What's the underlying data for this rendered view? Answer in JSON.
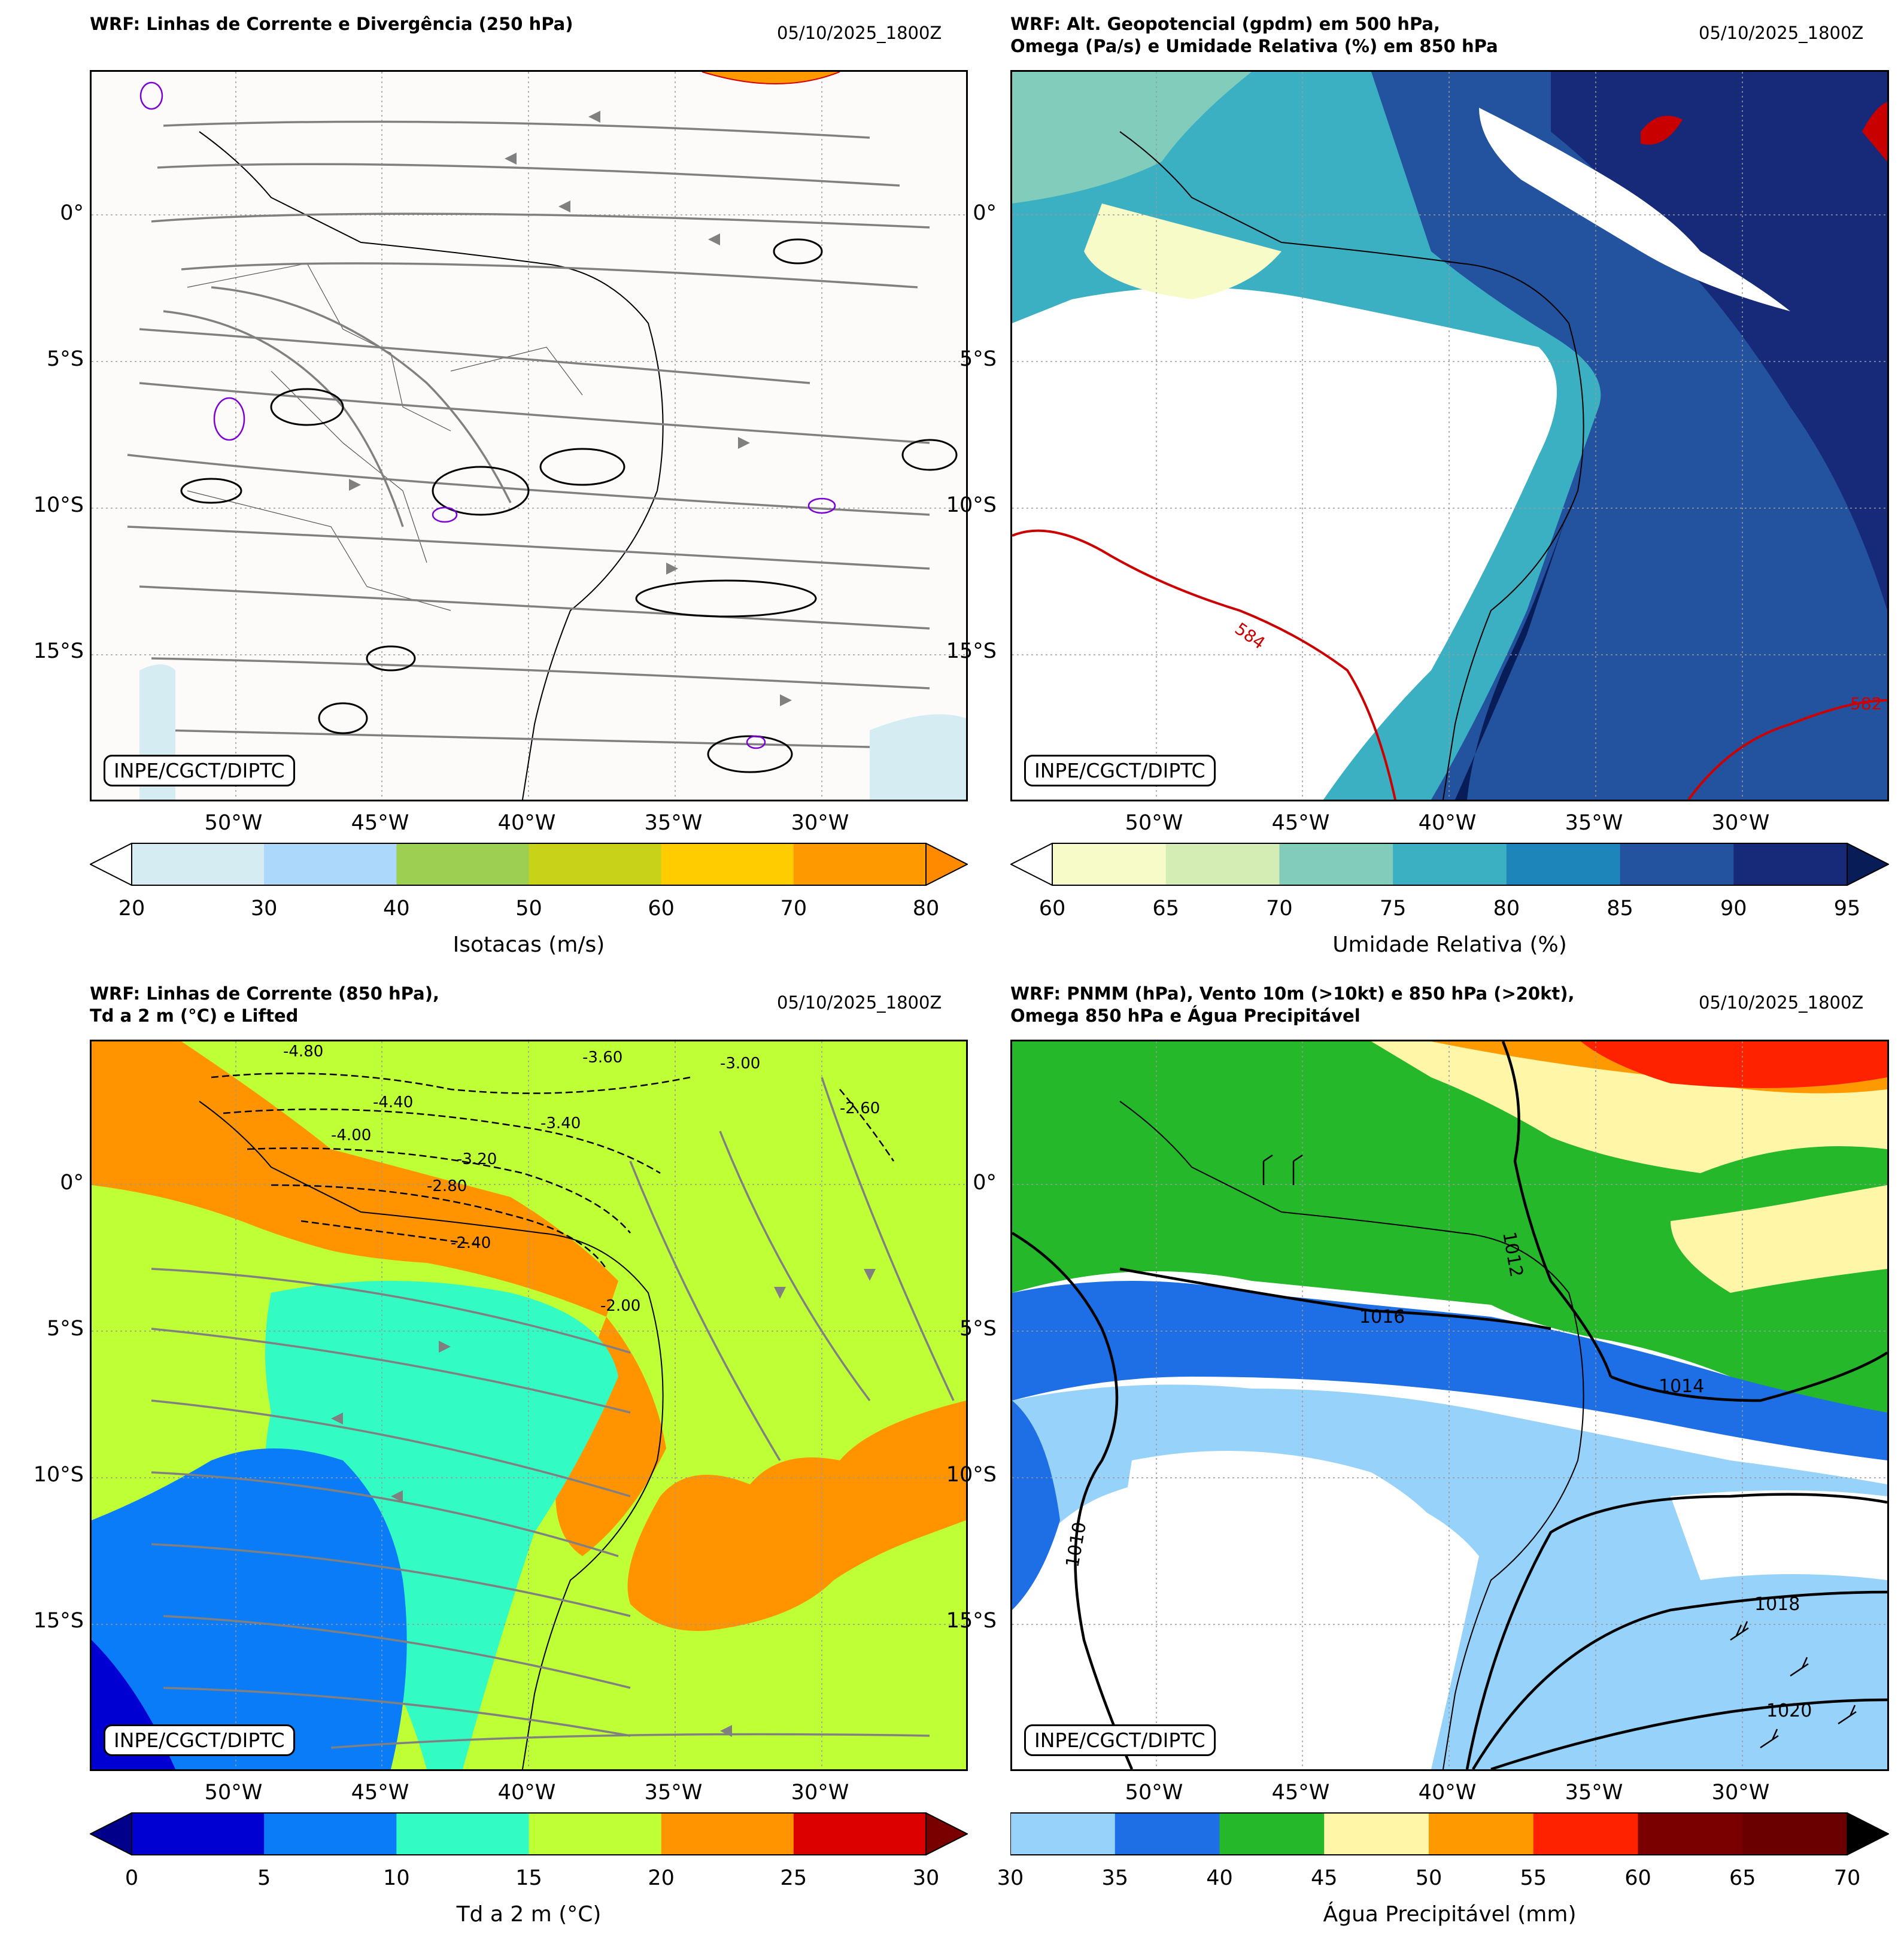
{
  "credit": "INPE/CGCT/DIPTC",
  "lat_labels": [
    "0°",
    "5°S",
    "10°S",
    "15°S"
  ],
  "lon_labels": [
    "50°W",
    "45°W",
    "40°W",
    "35°W",
    "30°W"
  ],
  "panels": [
    {
      "title": "WRF: Linhas de Corrente e Divergência (250 hPa)",
      "date": "05/10/2025_1800Z",
      "colorbar": {
        "label": "Isotacas (m/s)",
        "ticks": [
          "20",
          "30",
          "40",
          "50",
          "60",
          "70",
          "80"
        ],
        "colors": [
          "#d4ecf2",
          "#acd9fb",
          "#9ccf52",
          "#c8d218",
          "#ffcc00",
          "#ff9900"
        ],
        "under": "#ffffff",
        "over": "#ff8a00"
      }
    },
    {
      "title": "WRF: Alt. Geopotencial (gpdm) em 500 hPa,\nOmega (Pa/s) e Umidade Relativa (%) em 850 hPa",
      "date": "05/10/2025_1800Z",
      "contour_labels": [
        "584",
        "582"
      ],
      "colorbar": {
        "label": "Umidade Relativa (%)",
        "ticks": [
          "60",
          "65",
          "70",
          "75",
          "80",
          "85",
          "90",
          "95"
        ],
        "colors": [
          "#f6fbc8",
          "#d3edb4",
          "#82ccbb",
          "#3bb0c2",
          "#1e85ba",
          "#23529f",
          "#172a7a"
        ],
        "under": "#ffffff",
        "over": "#081d58"
      }
    },
    {
      "title": "WRF: Linhas de Corrente (850 hPa),\nTd a 2 m (°C) e Lifted",
      "date": "05/10/2025_1800Z",
      "contour_labels": [
        "-4.80",
        "-4.40",
        "-4.00",
        "-3.60",
        "-3.40",
        "-3.20",
        "-3.00",
        "-2.80",
        "-2.60",
        "-2.40",
        "-2.00"
      ],
      "colorbar": {
        "label": "Td a 2 m (°C)",
        "ticks": [
          "0",
          "5",
          "10",
          "15",
          "20",
          "25",
          "30"
        ],
        "colors": [
          "#0000d2",
          "#0a7cf7",
          "#33fbc4",
          "#bfff35",
          "#ff9400",
          "#dd0000"
        ],
        "under": "#00008b",
        "over": "#7a0000"
      }
    },
    {
      "title": "WRF: PNMM (hPa), Vento 10m (>10kt) e 850 hPa (>20kt),\nOmega 850 hPa e Água Precipitável",
      "date": "05/10/2025_1800Z",
      "contour_labels": [
        "1010",
        "1012",
        "1014",
        "1016",
        "1018",
        "1020"
      ],
      "colorbar": {
        "label": "Água Precipitável (mm)",
        "ticks": [
          "30",
          "35",
          "40",
          "45",
          "50",
          "55",
          "60",
          "65",
          "70"
        ],
        "colors": [
          "#96d2fa",
          "#1e6ee6",
          "#24b82a",
          "#fff6a8",
          "#ff9900",
          "#ff2200",
          "#7a0000",
          "#6b0000"
        ],
        "over": "#000000"
      }
    }
  ]
}
